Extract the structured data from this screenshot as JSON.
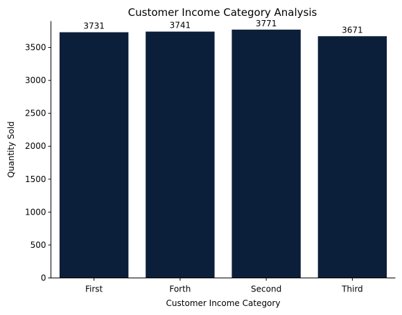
{
  "chart_data": {
    "type": "bar",
    "title": "Customer Income Category Analysis",
    "xlabel": "Customer Income Category",
    "ylabel": "Quantity Sold",
    "categories": [
      "First",
      "Forth",
      "Second",
      "Third"
    ],
    "values": [
      3731,
      3741,
      3771,
      3671
    ],
    "data_labels": [
      "3731",
      "3741",
      "3771",
      "3671"
    ],
    "ylim": [
      0,
      3900
    ],
    "yticks": [
      0,
      500,
      1000,
      1500,
      2000,
      2500,
      3000,
      3500
    ],
    "ytick_labels": [
      "0",
      "500",
      "1000",
      "1500",
      "2000",
      "2500",
      "3000",
      "3500"
    ],
    "bar_color": "#0c1f3a",
    "grid": false,
    "legend": "none"
  }
}
